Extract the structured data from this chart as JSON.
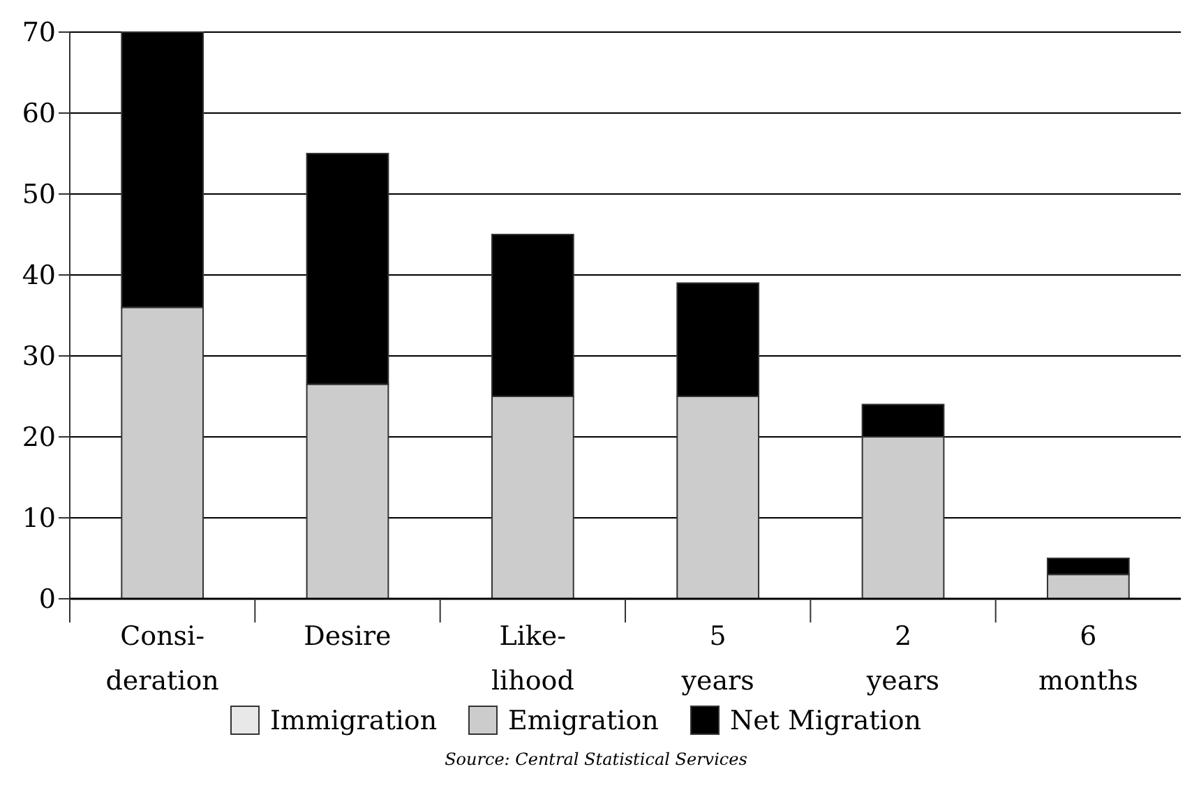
{
  "chart_data": {
    "type": "bar",
    "stacked": true,
    "categories": [
      "Consi-\nderation",
      "Desire",
      "Like-\nlihood",
      "5\nyears",
      "2\nyears",
      "6\nmonths"
    ],
    "series": [
      {
        "name": "Immigration",
        "color": "#e8e8e8",
        "values": [
          null,
          null,
          null,
          null,
          null,
          null
        ]
      },
      {
        "name": "Emigration",
        "color": "#cccccc",
        "values": [
          36,
          26.5,
          25,
          25,
          20,
          3
        ]
      },
      {
        "name": "Net Migration",
        "color": "#000000",
        "values": [
          34,
          28.5,
          20,
          14,
          4,
          2
        ]
      }
    ],
    "ylim": [
      0,
      70
    ],
    "yticks": [
      0,
      10,
      20,
      30,
      40,
      50,
      60,
      70
    ],
    "grid": "y",
    "legend": "bottom",
    "annotations": [
      "Source: Central Statistical Services"
    ]
  }
}
